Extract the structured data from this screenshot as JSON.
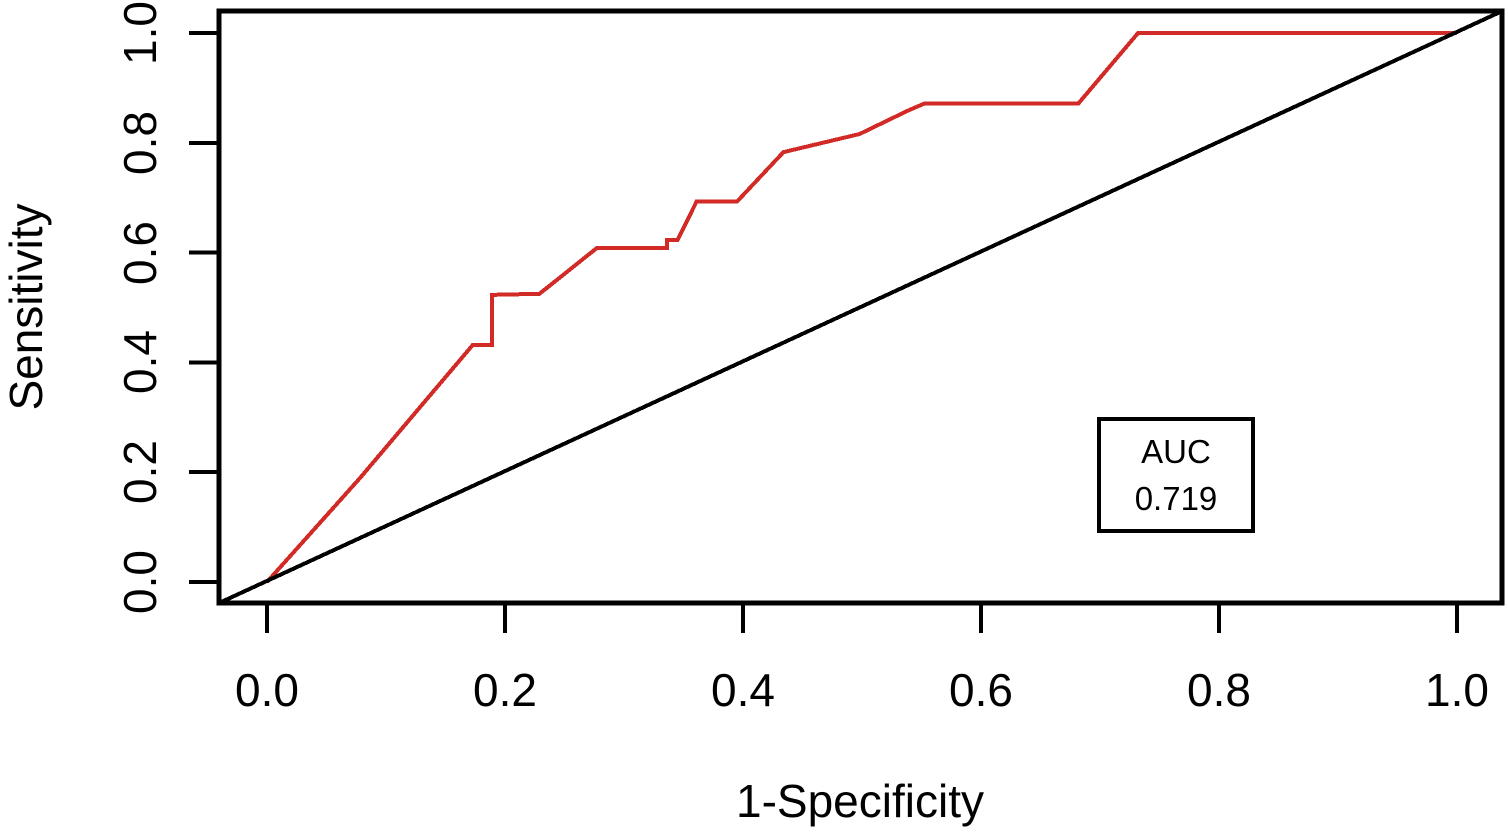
{
  "figure": {
    "background": "#ffffff",
    "axis_color": "#000000"
  },
  "axes": {
    "xlabel": "1-Specificity",
    "ylabel": "Sensitivity"
  },
  "annotation_box": {
    "label": "AUC",
    "value": "0.719"
  },
  "chart_data": {
    "type": "line",
    "title": "",
    "subtitle": "",
    "xlabel": "1-Specificity",
    "ylabel": "Sensitivity",
    "xlim": [
      -0.04,
      1.04
    ],
    "ylim": [
      -0.04,
      1.04
    ],
    "xticks": [
      0.0,
      0.2,
      0.4,
      0.6,
      0.8,
      1.0
    ],
    "xtick_labels": [
      "0.0",
      "0.2",
      "0.4",
      "0.6",
      "0.8",
      "1.0"
    ],
    "yticks": [
      0.0,
      0.2,
      0.4,
      0.6,
      0.8,
      1.0
    ],
    "ytick_labels": [
      "0.0",
      "0.2",
      "0.4",
      "0.6",
      "0.8",
      "1.0"
    ],
    "grid": false,
    "legend_position": "none",
    "auc": 0.719,
    "annotations": [
      {
        "text": "AUC",
        "x": 0.764,
        "y": 0.242
      },
      {
        "text": "0.719",
        "x": 0.764,
        "y": 0.152
      }
    ],
    "series": [
      {
        "name": "ROC curve",
        "slug": "roc-curve",
        "color": "#d22b27",
        "line_width": 4,
        "points": [
          [
            0.0,
            0.0
          ],
          [
            0.078,
            0.189
          ],
          [
            0.173,
            0.432
          ],
          [
            0.189,
            0.432
          ],
          [
            0.189,
            0.523
          ],
          [
            0.229,
            0.525
          ],
          [
            0.277,
            0.608
          ],
          [
            0.336,
            0.608
          ],
          [
            0.336,
            0.623
          ],
          [
            0.345,
            0.623
          ],
          [
            0.361,
            0.693
          ],
          [
            0.395,
            0.693
          ],
          [
            0.434,
            0.783
          ],
          [
            0.498,
            0.816
          ],
          [
            0.538,
            0.858
          ],
          [
            0.553,
            0.872
          ],
          [
            0.682,
            0.872
          ],
          [
            0.732,
            1.0
          ],
          [
            1.0,
            1.0
          ]
        ]
      },
      {
        "name": "chance diagonal",
        "slug": "chance-diagonal",
        "color": "#000000",
        "line_width": 4,
        "points": [
          [
            -0.04,
            -0.038
          ],
          [
            1.038,
            1.04
          ]
        ]
      }
    ]
  }
}
